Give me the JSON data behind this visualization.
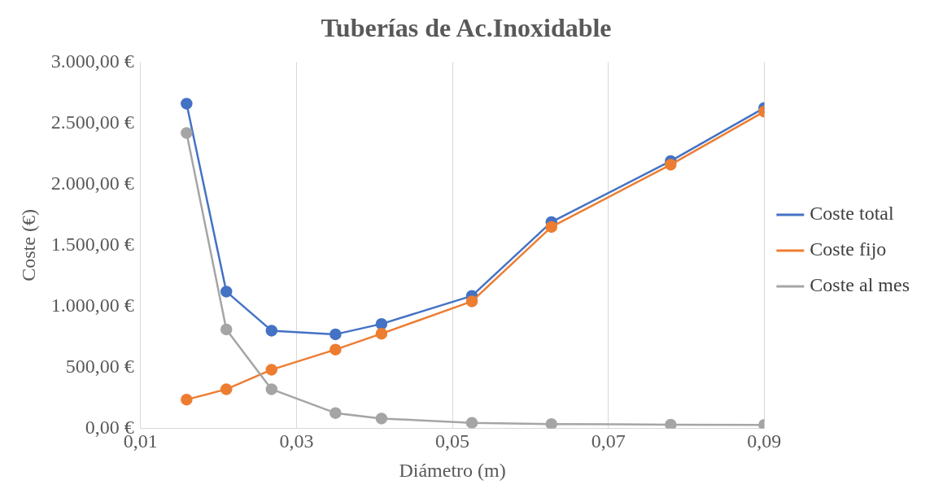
{
  "chart_data": {
    "type": "line",
    "title": "Tuberías de Ac.Inoxidable",
    "xlabel": "Diámetro (m)",
    "ylabel": "Coste (€)",
    "x": [
      0.0159,
      0.021,
      0.0268,
      0.035,
      0.0409,
      0.0525,
      0.0627,
      0.078,
      0.09
    ],
    "series": [
      {
        "name": "Coste total",
        "color": "#4472c4",
        "values": [
          2660,
          1120,
          800,
          770,
          855,
          1085,
          1690,
          2190,
          2625
        ]
      },
      {
        "name": "Coste fijo",
        "color": "#ed7d31",
        "values": [
          235,
          320,
          480,
          645,
          775,
          1040,
          1650,
          2160,
          2595
        ]
      },
      {
        "name": "Coste al mes",
        "color": "#a5a5a5",
        "values": [
          2420,
          810,
          320,
          125,
          80,
          45,
          35,
          30,
          28
        ]
      }
    ],
    "xlim": [
      0.01,
      0.09
    ],
    "xticks": [
      {
        "value": 0.01,
        "label": "0,01"
      },
      {
        "value": 0.03,
        "label": "0,03"
      },
      {
        "value": 0.05,
        "label": "0,05"
      },
      {
        "value": 0.07,
        "label": "0,07"
      },
      {
        "value": 0.09,
        "label": "0,09"
      }
    ],
    "ylim": [
      0,
      3000
    ],
    "yticks": [
      {
        "value": 0,
        "label": "0,00 €"
      },
      {
        "value": 500,
        "label": "500,00 €"
      },
      {
        "value": 1000,
        "label": "1.000,00 €"
      },
      {
        "value": 1500,
        "label": "1.500,00 €"
      },
      {
        "value": 2000,
        "label": "2.000,00 €"
      },
      {
        "value": 2500,
        "label": "2.500,00 €"
      },
      {
        "value": 3000,
        "label": "3.000,00 €"
      }
    ],
    "grid": "x",
    "legend": "right",
    "marker": "circle",
    "line_style": "solid"
  }
}
